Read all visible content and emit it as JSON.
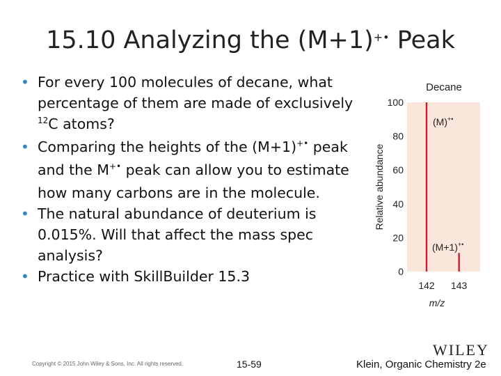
{
  "slide": {
    "title_main": "15.10 Analyzing the (M+1)",
    "title_sup": "+•",
    "title_tail": " Peak"
  },
  "bullets": [
    {
      "a": "For every 100 molecules of decane, what percentage of them are made of exclusively ",
      "sup1": "12",
      "b": "C atoms?",
      "sup2": "",
      "c": ""
    },
    {
      "a": "Comparing the heights of the (M+1)",
      "sup1": "+•",
      "b": " peak and the M",
      "sup2": "+•",
      "c": " peak can allow you to estimate how many carbons are in the molecule."
    },
    {
      "a": "The natural abundance of deuterium is 0.015%.  Will that affect the mass spec analysis?",
      "sup1": "",
      "b": "",
      "sup2": "",
      "c": ""
    },
    {
      "a": "Practice with SkillBuilder 15.3",
      "sup1": "",
      "b": "",
      "sup2": "",
      "c": ""
    }
  ],
  "chart_data": {
    "type": "bar",
    "title": "Decane",
    "xlabel": "m/z",
    "ylabel": "Relative abundance",
    "x": [
      142,
      143
    ],
    "values": [
      100,
      11
    ],
    "ylim": [
      0,
      100
    ],
    "yticks": [
      0,
      20,
      40,
      60,
      80,
      100
    ],
    "annotations": [
      {
        "text": "(M)",
        "sup": "+•",
        "x": 142
      },
      {
        "text": "(M+1)",
        "sup": "+•",
        "x": 143
      }
    ],
    "colors": {
      "bar": "#c8202a",
      "band": "#fbe6dc"
    }
  },
  "footer": {
    "copyright": "Copyright © 2015 John Wiley & Sons, Inc. All rights reserved.",
    "page": "15-59",
    "book": "Klein, Organic Chemistry 2e",
    "logo": "WILEY"
  }
}
